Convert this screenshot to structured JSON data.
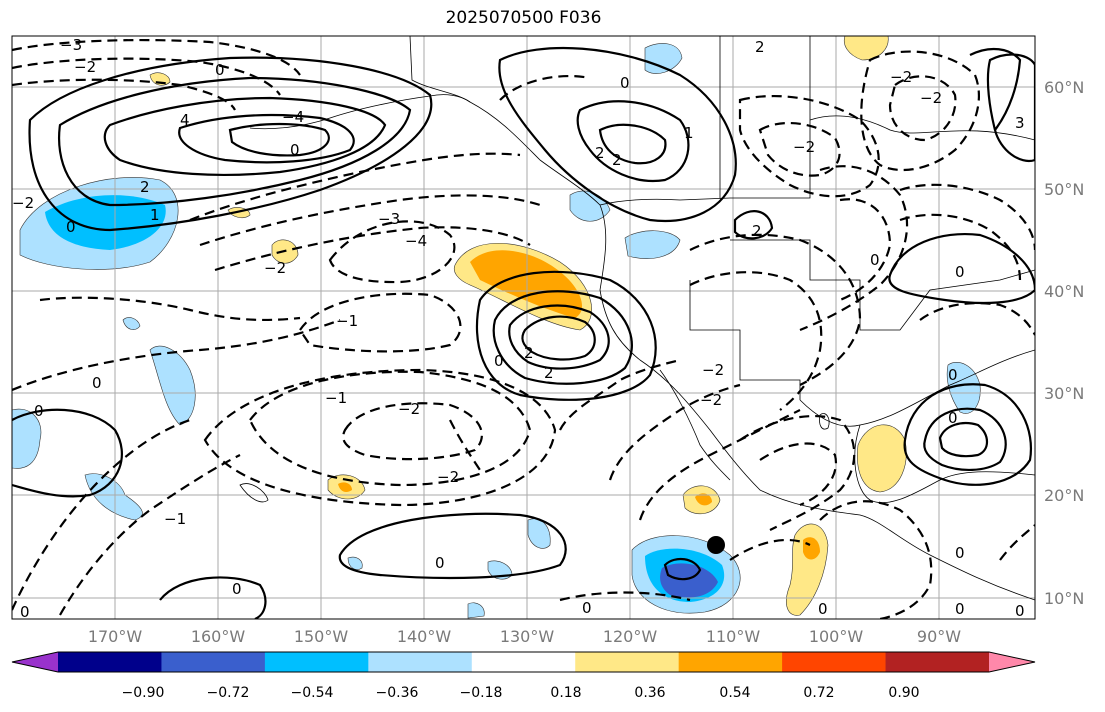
{
  "title": "2025070500 F036",
  "map": {
    "lat_labels": [
      "60°N",
      "50°N",
      "40°N",
      "30°N",
      "20°N",
      "10°N"
    ],
    "lon_labels": [
      "170°W",
      "160°W",
      "150°W",
      "140°W",
      "130°W",
      "120°W",
      "110°W",
      "100°W",
      "90°W"
    ]
  },
  "colorbar": {
    "tick_labels": [
      "−0.90",
      "−0.72",
      "−0.54",
      "−0.36",
      "−0.18",
      "0.18",
      "0.36",
      "0.54",
      "0.72",
      "0.90"
    ],
    "colors": [
      "#9932cc",
      "#00008b",
      "#3a5fcd",
      "#00bfff",
      "#ade1ff",
      "#ffffff",
      "#ffe887",
      "#ffa500",
      "#ff4500",
      "#b22222",
      "#ff88aa"
    ]
  },
  "contour_labels": [
    "0",
    "2",
    "4",
    "1",
    "−1",
    "−2",
    "−3",
    "−4",
    "3"
  ],
  "marker": "black-dot"
}
